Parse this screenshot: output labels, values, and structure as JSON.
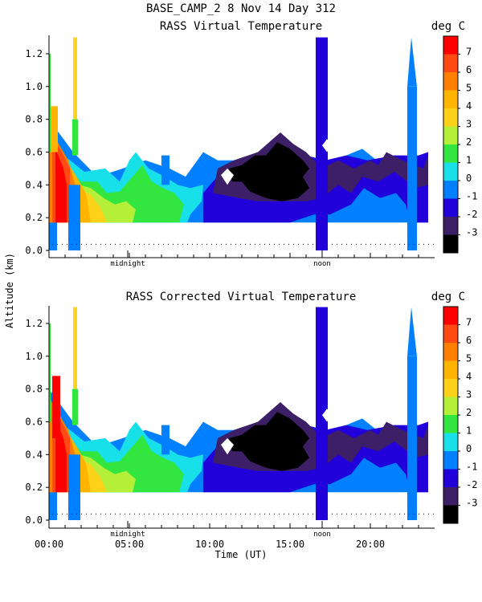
{
  "figure_title": "BASE_CAMP_2   8 Nov 14 Day 312",
  "colorbar_unit": "deg C",
  "shared_ylabel": "Altitude (km)",
  "shared_xlabel": "Time (UT)",
  "colors": {
    "-3": "#000000",
    "-2": "#3c1f66",
    "-1": "#2200d9",
    "0": "#0080ff",
    "1": "#18e0e8",
    "2": "#33e63f",
    "3": "#b6ef38",
    "4": "#ffd21a",
    "5": "#ffb400",
    "6": "#ff8000",
    "7": "#ff4a14",
    "8": "#ff0000"
  },
  "chart_data": [
    {
      "type": "heatmap",
      "title": "RASS Virtual Temperature",
      "xlabel": "",
      "ylabel": "Altitude (km)",
      "xlim": [
        0,
        24
      ],
      "ylim": [
        0,
        1.3
      ],
      "yticks": [
        "0.0",
        "0.2",
        "0.4",
        "0.6",
        "0.8",
        "1.0",
        "1.2"
      ],
      "xtick_hours": [
        0,
        5,
        10,
        15,
        20
      ],
      "xtick_labels": [],
      "markers": [
        {
          "label": "midnight",
          "hour": 4.9
        },
        {
          "label": "noon",
          "hour": 17.0
        }
      ],
      "colorbar": {
        "unit": "deg C",
        "ticks": [
          "7",
          "6",
          "5",
          "4",
          "3",
          "2",
          "1",
          "0",
          "-1",
          "-2",
          "-3"
        ],
        "levels": [
          -3,
          -2,
          -1,
          0,
          1,
          2,
          3,
          4,
          5,
          6,
          7,
          8
        ]
      },
      "grid": false
    },
    {
      "type": "heatmap",
      "title": "RASS Corrected Virtual Temperature",
      "xlabel": "Time (UT)",
      "ylabel": "Altitude (km)",
      "xlim": [
        0,
        24
      ],
      "ylim": [
        0,
        1.3
      ],
      "yticks": [
        "0.0",
        "0.2",
        "0.4",
        "0.6",
        "0.8",
        "1.0",
        "1.2"
      ],
      "xtick_hours": [
        0,
        5,
        10,
        15,
        20
      ],
      "xtick_labels": [
        "00:00",
        "05:00",
        "10:00",
        "15:00",
        "20:00"
      ],
      "markers": [
        {
          "label": "midnight",
          "hour": 4.9
        },
        {
          "label": "noon",
          "hour": 17.0
        }
      ],
      "colorbar": {
        "unit": "deg C",
        "ticks": [
          "7",
          "6",
          "5",
          "4",
          "3",
          "2",
          "1",
          "0",
          "-1",
          "-2",
          "-3"
        ],
        "levels": [
          -3,
          -2,
          -1,
          0,
          1,
          2,
          3,
          4,
          5,
          6,
          7,
          8
        ]
      },
      "grid": false
    }
  ]
}
